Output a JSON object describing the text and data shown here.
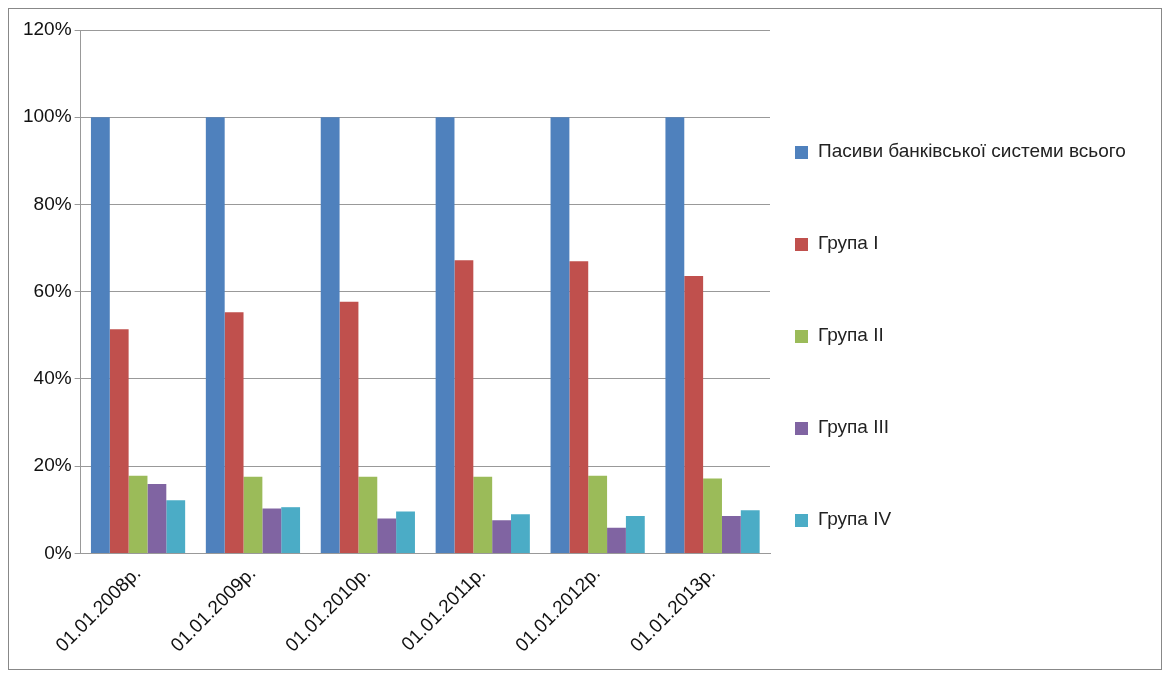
{
  "chart_data": {
    "type": "bar",
    "categories": [
      "01.01.2008р.",
      "01.01.2009р.",
      "01.01.2010р.",
      "01.01.2011р.",
      "01.01.2012р.",
      "01.01.2013р."
    ],
    "series": [
      {
        "name": "Пасиви банківської системи всього",
        "color": "#4f81bd",
        "values": [
          100,
          100,
          100,
          100,
          100,
          100
        ]
      },
      {
        "name": "Група I",
        "color": "#c0504d",
        "values": [
          51.4,
          55.3,
          57.7,
          67.2,
          67.0,
          63.6
        ]
      },
      {
        "name": "Група II",
        "color": "#9bbb59",
        "values": [
          17.8,
          17.6,
          17.6,
          17.6,
          17.8,
          17.2
        ]
      },
      {
        "name": "Група III",
        "color": "#8064a2",
        "values": [
          15.9,
          10.3,
          8.0,
          7.6,
          5.9,
          8.6
        ]
      },
      {
        "name": "Група IV",
        "color": "#4bacc6",
        "values": [
          12.2,
          10.6,
          9.6,
          9.0,
          8.6,
          9.9
        ]
      }
    ],
    "ylim": [
      0,
      120
    ],
    "yticks": [
      {
        "value": 0,
        "label": "0%"
      },
      {
        "value": 20,
        "label": "20%"
      },
      {
        "value": 40,
        "label": "40%"
      },
      {
        "value": 60,
        "label": "60%"
      },
      {
        "value": 80,
        "label": "80%"
      },
      {
        "value": 100,
        "label": "100%"
      },
      {
        "value": 120,
        "label": "120%"
      }
    ],
    "grid": "y",
    "legend": "right"
  }
}
